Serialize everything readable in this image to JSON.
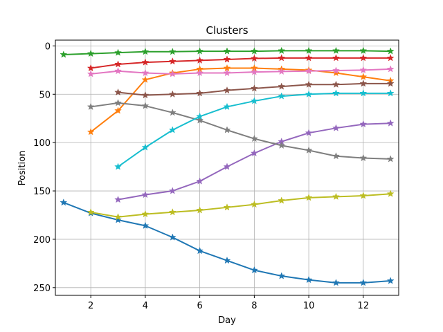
{
  "chart_data": {
    "type": "line",
    "title": "Clusters",
    "xlabel": "Day",
    "ylabel": "Position",
    "xlim": [
      0.7,
      13.3
    ],
    "ylim": [
      258,
      -6
    ],
    "y_inverted": true,
    "xticks": [
      2,
      4,
      6,
      8,
      10,
      12
    ],
    "yticks": [
      0,
      50,
      100,
      150,
      200,
      250
    ],
    "grid": true,
    "marker": "star",
    "series": [
      {
        "color": "#1f77b4",
        "points": [
          [
            1,
            162
          ],
          [
            2,
            173
          ],
          [
            3,
            180
          ],
          [
            4,
            186
          ],
          [
            5,
            198
          ],
          [
            6,
            212
          ],
          [
            7,
            222
          ],
          [
            8,
            232
          ],
          [
            9,
            238
          ],
          [
            10,
            242
          ],
          [
            11,
            245
          ],
          [
            12,
            245
          ],
          [
            13,
            243
          ]
        ]
      },
      {
        "color": "#ff7f0e",
        "points": [
          [
            2,
            89
          ],
          [
            3,
            67
          ],
          [
            4,
            35
          ],
          [
            5,
            28
          ],
          [
            6,
            24
          ],
          [
            7,
            23
          ],
          [
            8,
            23
          ],
          [
            9,
            24
          ],
          [
            10,
            25
          ],
          [
            11,
            28
          ],
          [
            12,
            32
          ],
          [
            13,
            36
          ]
        ]
      },
      {
        "color": "#2ca02c",
        "points": [
          [
            1,
            9
          ],
          [
            2,
            8
          ],
          [
            3,
            7
          ],
          [
            4,
            6
          ],
          [
            5,
            6
          ],
          [
            6,
            5.5
          ],
          [
            7,
            5.5
          ],
          [
            8,
            5.5
          ],
          [
            9,
            5
          ],
          [
            10,
            5
          ],
          [
            11,
            5
          ],
          [
            12,
            5
          ],
          [
            13,
            5.5
          ]
        ]
      },
      {
        "color": "#d62728",
        "points": [
          [
            2,
            23
          ],
          [
            3,
            19
          ],
          [
            4,
            17
          ],
          [
            5,
            16
          ],
          [
            6,
            15
          ],
          [
            7,
            14
          ],
          [
            8,
            13
          ],
          [
            9,
            12.5
          ],
          [
            10,
            12.5
          ],
          [
            11,
            12.5
          ],
          [
            12,
            12.5
          ],
          [
            13,
            12.5
          ]
        ]
      },
      {
        "color": "#9467bd",
        "points": [
          [
            3,
            159
          ],
          [
            4,
            154
          ],
          [
            5,
            150
          ],
          [
            6,
            140
          ],
          [
            7,
            125
          ],
          [
            8,
            111
          ],
          [
            9,
            99
          ],
          [
            10,
            90
          ],
          [
            11,
            85
          ],
          [
            12,
            81
          ],
          [
            13,
            80
          ]
        ]
      },
      {
        "color": "#8c564b",
        "points": [
          [
            3,
            48
          ],
          [
            4,
            51
          ],
          [
            5,
            50
          ],
          [
            6,
            49
          ],
          [
            7,
            46
          ],
          [
            8,
            44
          ],
          [
            9,
            42
          ],
          [
            10,
            40
          ],
          [
            11,
            40
          ],
          [
            12,
            39
          ],
          [
            13,
            39
          ]
        ]
      },
      {
        "color": "#e377c2",
        "points": [
          [
            2,
            29
          ],
          [
            3,
            26
          ],
          [
            4,
            28
          ],
          [
            5,
            29
          ],
          [
            6,
            28
          ],
          [
            7,
            28
          ],
          [
            8,
            27
          ],
          [
            9,
            26.5
          ],
          [
            10,
            26
          ],
          [
            11,
            25.5
          ],
          [
            12,
            25
          ],
          [
            13,
            24
          ]
        ]
      },
      {
        "color": "#7f7f7f",
        "points": [
          [
            2,
            63
          ],
          [
            3,
            59
          ],
          [
            4,
            62
          ],
          [
            5,
            69
          ],
          [
            6,
            77
          ],
          [
            7,
            87
          ],
          [
            8,
            96
          ],
          [
            9,
            103
          ],
          [
            10,
            108
          ],
          [
            11,
            114
          ],
          [
            12,
            116
          ],
          [
            13,
            117
          ]
        ]
      },
      {
        "color": "#bcbd22",
        "points": [
          [
            2,
            172
          ],
          [
            3,
            177
          ],
          [
            4,
            174
          ],
          [
            5,
            172
          ],
          [
            6,
            170
          ],
          [
            7,
            167
          ],
          [
            8,
            164
          ],
          [
            9,
            160
          ],
          [
            10,
            157
          ],
          [
            11,
            156
          ],
          [
            12,
            155
          ],
          [
            13,
            153
          ]
        ]
      },
      {
        "color": "#17becf",
        "points": [
          [
            3,
            125
          ],
          [
            4,
            105
          ],
          [
            5,
            87
          ],
          [
            6,
            73
          ],
          [
            7,
            63
          ],
          [
            8,
            57
          ],
          [
            9,
            52
          ],
          [
            10,
            50
          ],
          [
            11,
            49
          ],
          [
            12,
            49
          ],
          [
            13,
            49
          ]
        ]
      }
    ]
  }
}
